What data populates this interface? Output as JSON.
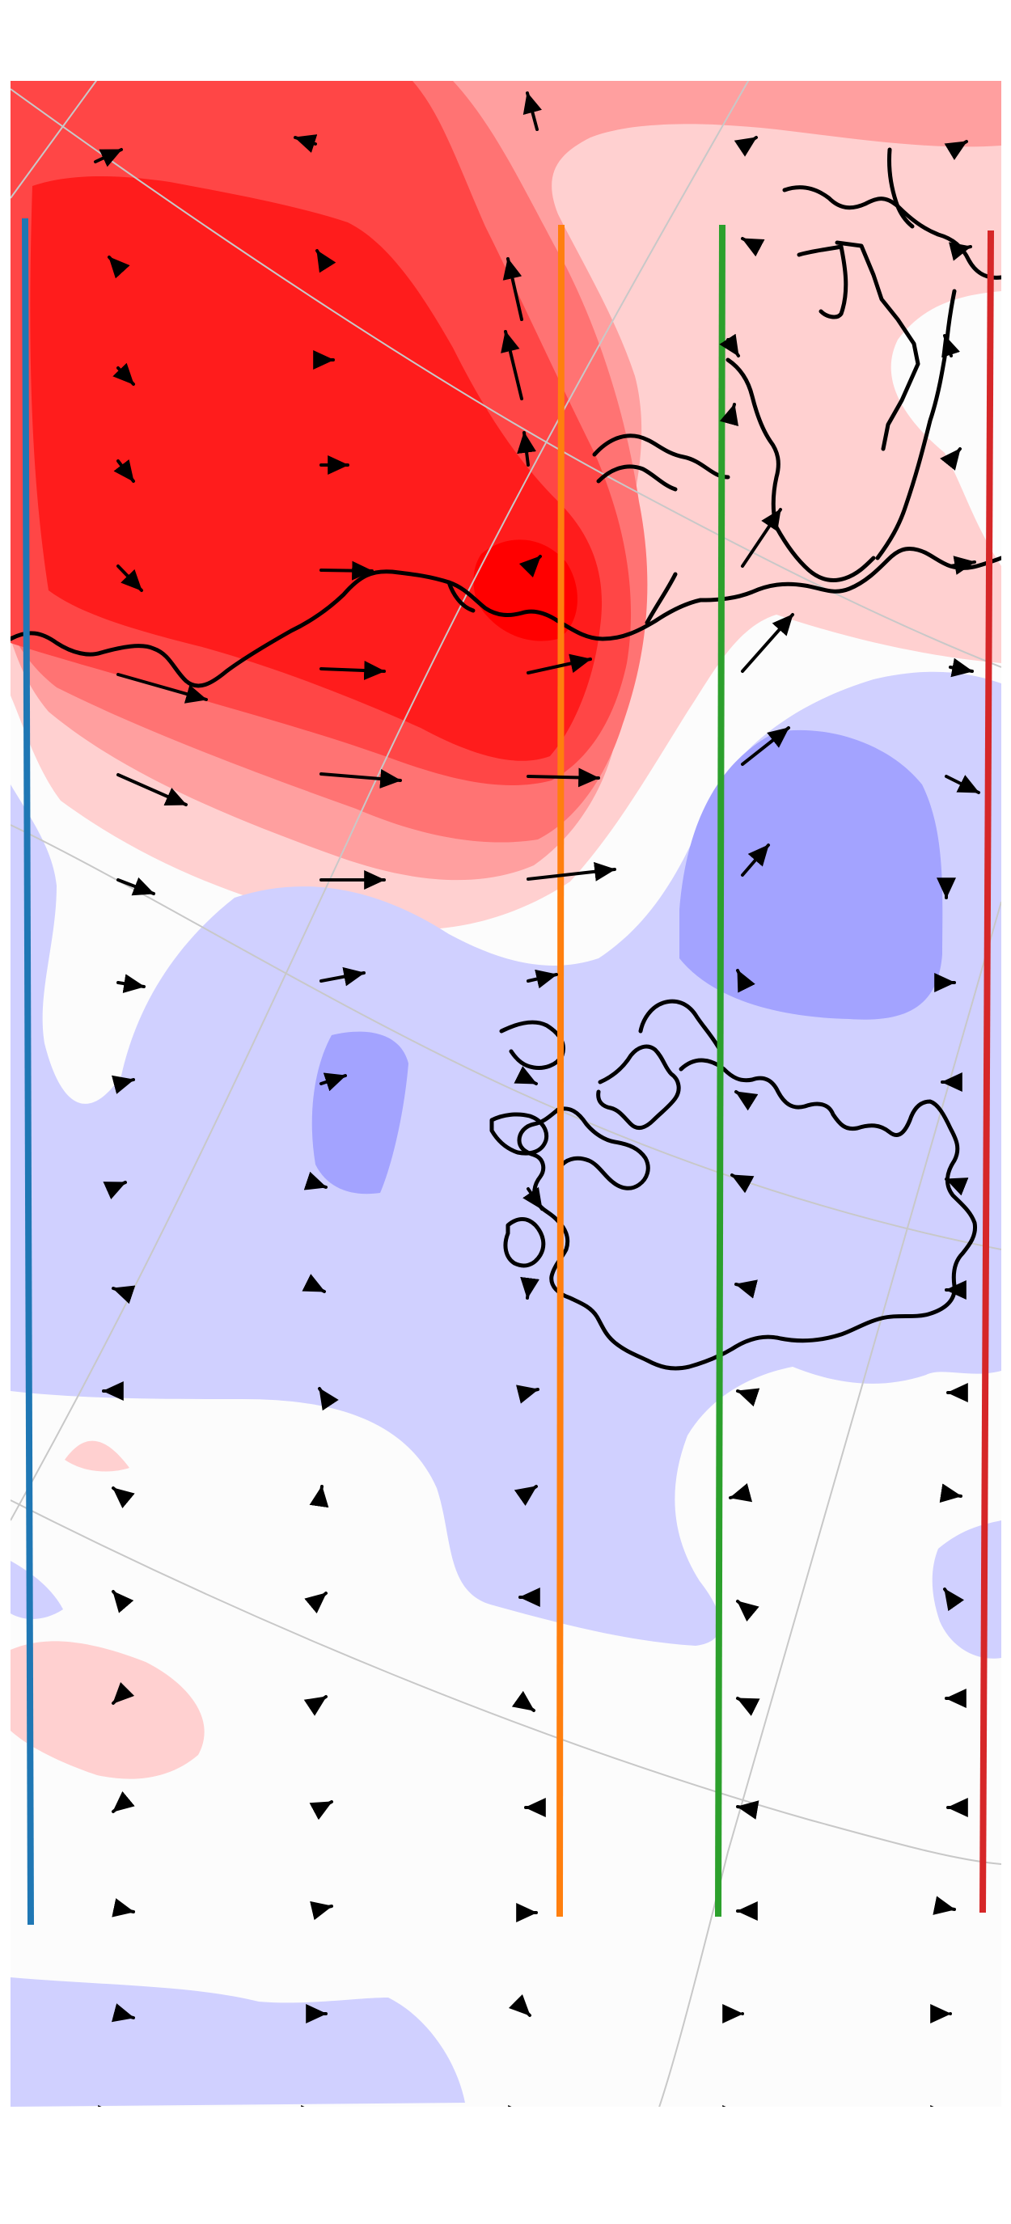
{
  "map": {
    "type": "anomaly-contour-map-with-vectors",
    "colors": {
      "background": "#ffffff",
      "ocean_neutral": "#fcfcfc",
      "graticule": "#c8c8c8",
      "coastline": "#000000",
      "arrows": "#000000",
      "positive_1": "#ffd0d0",
      "positive_2": "#ff9f9f",
      "positive_3": "#ff7373",
      "positive_4": "#ff4646",
      "positive_5": "#ff1c1c",
      "positive_6": "#ff0000",
      "negative_1": "#d0d0ff",
      "negative_2": "#a3a3ff"
    },
    "sections": [
      {
        "name": "blue-section-line",
        "color": "#1f77b4"
      },
      {
        "name": "orange-section-line",
        "color": "#ff7f0e"
      },
      {
        "name": "green-section-line",
        "color": "#2ca02c"
      },
      {
        "name": "red-section-line",
        "color": "#d62728"
      }
    ]
  }
}
